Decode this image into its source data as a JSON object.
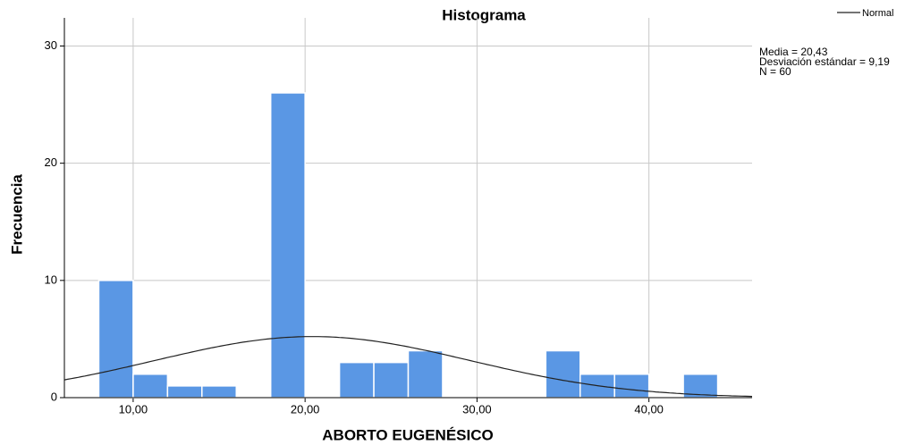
{
  "chart_data": {
    "type": "histogram",
    "title": "Histograma",
    "xlabel": "ABORTO EUGENÉSICO",
    "ylabel": "Frecuencia",
    "bins": [
      8,
      10,
      12,
      14,
      16,
      18,
      20,
      22,
      24,
      26,
      28,
      30,
      32,
      34,
      36,
      38,
      40,
      42,
      44
    ],
    "values": [
      10,
      2,
      1,
      1,
      0,
      26,
      0,
      3,
      3,
      4,
      0,
      0,
      0,
      4,
      2,
      2,
      0,
      2
    ],
    "color": "#5a97e4",
    "xlim": [
      6,
      46
    ],
    "ylim": [
      0,
      32.4
    ],
    "xticks": [
      {
        "value": 10,
        "label": "10,00"
      },
      {
        "value": 20,
        "label": "20,00"
      },
      {
        "value": 30,
        "label": "30,00"
      },
      {
        "value": 40,
        "label": "40,00"
      }
    ],
    "yticks": [
      0,
      10,
      20,
      30
    ],
    "grid": true,
    "legend": {
      "name": "Normal",
      "position": "top-right"
    },
    "stats": {
      "mean": {
        "value": 20.43,
        "label": "Media = 20,43"
      },
      "sd": {
        "value": 9.19,
        "label": "Desviación estándar = 9,19"
      },
      "n": {
        "value": 60,
        "label": "N = 60"
      }
    }
  }
}
